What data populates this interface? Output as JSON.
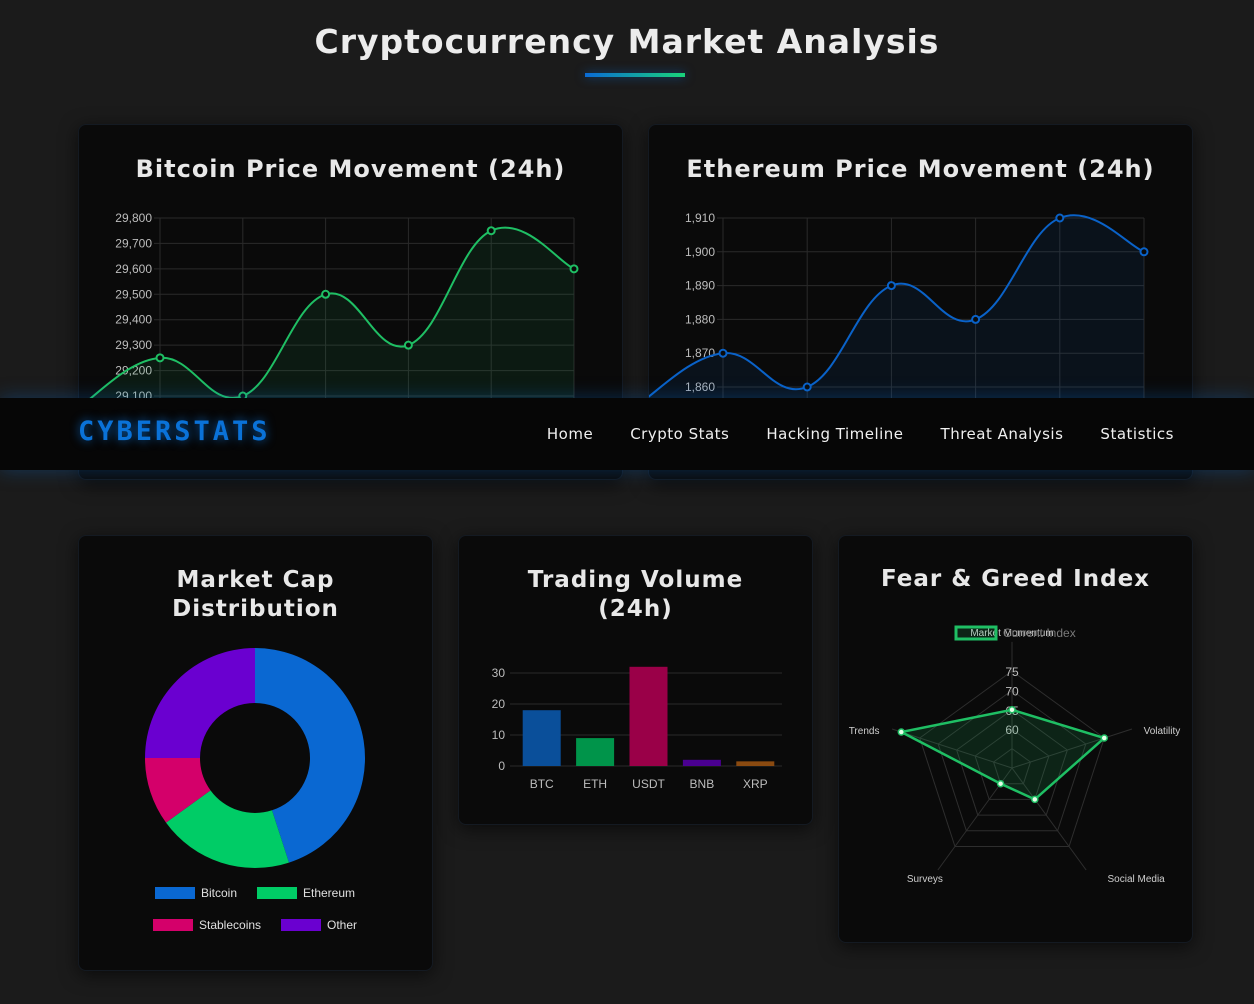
{
  "page": {
    "title": "Cryptocurrency Market Analysis"
  },
  "nav": {
    "logo": "CYBERSTATS",
    "links": [
      "Home",
      "Crypto Stats",
      "Hacking Timeline",
      "Threat Analysis",
      "Statistics"
    ]
  },
  "colors": {
    "btc_line": "#1fbf64",
    "eth_line": "#0a62c8",
    "accent_blue": "#0a6ad6",
    "accent_green": "#19d37a"
  },
  "cards": {
    "btc": {
      "title": "Bitcoin Price Movement (24h)"
    },
    "eth": {
      "title": "Ethereum Price Movement (24h)"
    },
    "marketcap": {
      "title_line1": "Market Cap",
      "title_line2": "Distribution"
    },
    "volume": {
      "title_line1": "Trading Volume",
      "title_line2": "(24h)"
    },
    "fear": {
      "title": "Fear & Greed Index"
    }
  },
  "chart_data": [
    {
      "type": "line",
      "id": "btc",
      "title": "Bitcoin Price Movement (24h)",
      "yticks": [
        "29,800",
        "29,700",
        "29,600",
        "29,500",
        "29,400",
        "29,300",
        "29,200",
        "29,100"
      ],
      "y": [
        29050,
        29250,
        29100,
        29500,
        29300,
        29750,
        29600
      ],
      "ylim": [
        29100,
        29800
      ],
      "color": "#1fbf64"
    },
    {
      "type": "line",
      "id": "eth",
      "title": "Ethereum Price Movement (24h)",
      "yticks": [
        "1,910",
        "1,900",
        "1,890",
        "1,880",
        "1,870",
        "1,860"
      ],
      "y": [
        1855,
        1870,
        1860,
        1890,
        1880,
        1910,
        1900
      ],
      "ylim": [
        1860,
        1910
      ],
      "color": "#0a62c8"
    },
    {
      "type": "pie",
      "id": "marketcap",
      "title": "Market Cap Distribution",
      "labels": [
        "Bitcoin",
        "Ethereum",
        "Stablecoins",
        "Other"
      ],
      "values": [
        45,
        20,
        10,
        25
      ],
      "colors": [
        "#0a68d2",
        "#00cc66",
        "#d4006a",
        "#6a00d0"
      ]
    },
    {
      "type": "bar",
      "id": "volume",
      "title": "Trading Volume (24h)",
      "categories": [
        "BTC",
        "ETH",
        "USDT",
        "BNB",
        "XRP"
      ],
      "values": [
        18,
        9,
        32,
        2,
        1.5
      ],
      "yticks": [
        "30",
        "20",
        "10",
        "0"
      ],
      "ylim": [
        0,
        30
      ],
      "colors": [
        "#0a4f9a",
        "#00944a",
        "#9a0048",
        "#4a0090",
        "#8a4a10"
      ]
    },
    {
      "type": "radar",
      "id": "fear",
      "title": "Fear & Greed Index",
      "legend": "Current Index",
      "labels": [
        "Market Momentum",
        "Volatility",
        "Social Media",
        "Surveys",
        "Trends"
      ],
      "values": [
        65,
        75,
        60,
        55,
        80
      ],
      "ticks": [
        "75",
        "70",
        "65",
        "60"
      ],
      "color": "#1fbf64"
    }
  ]
}
